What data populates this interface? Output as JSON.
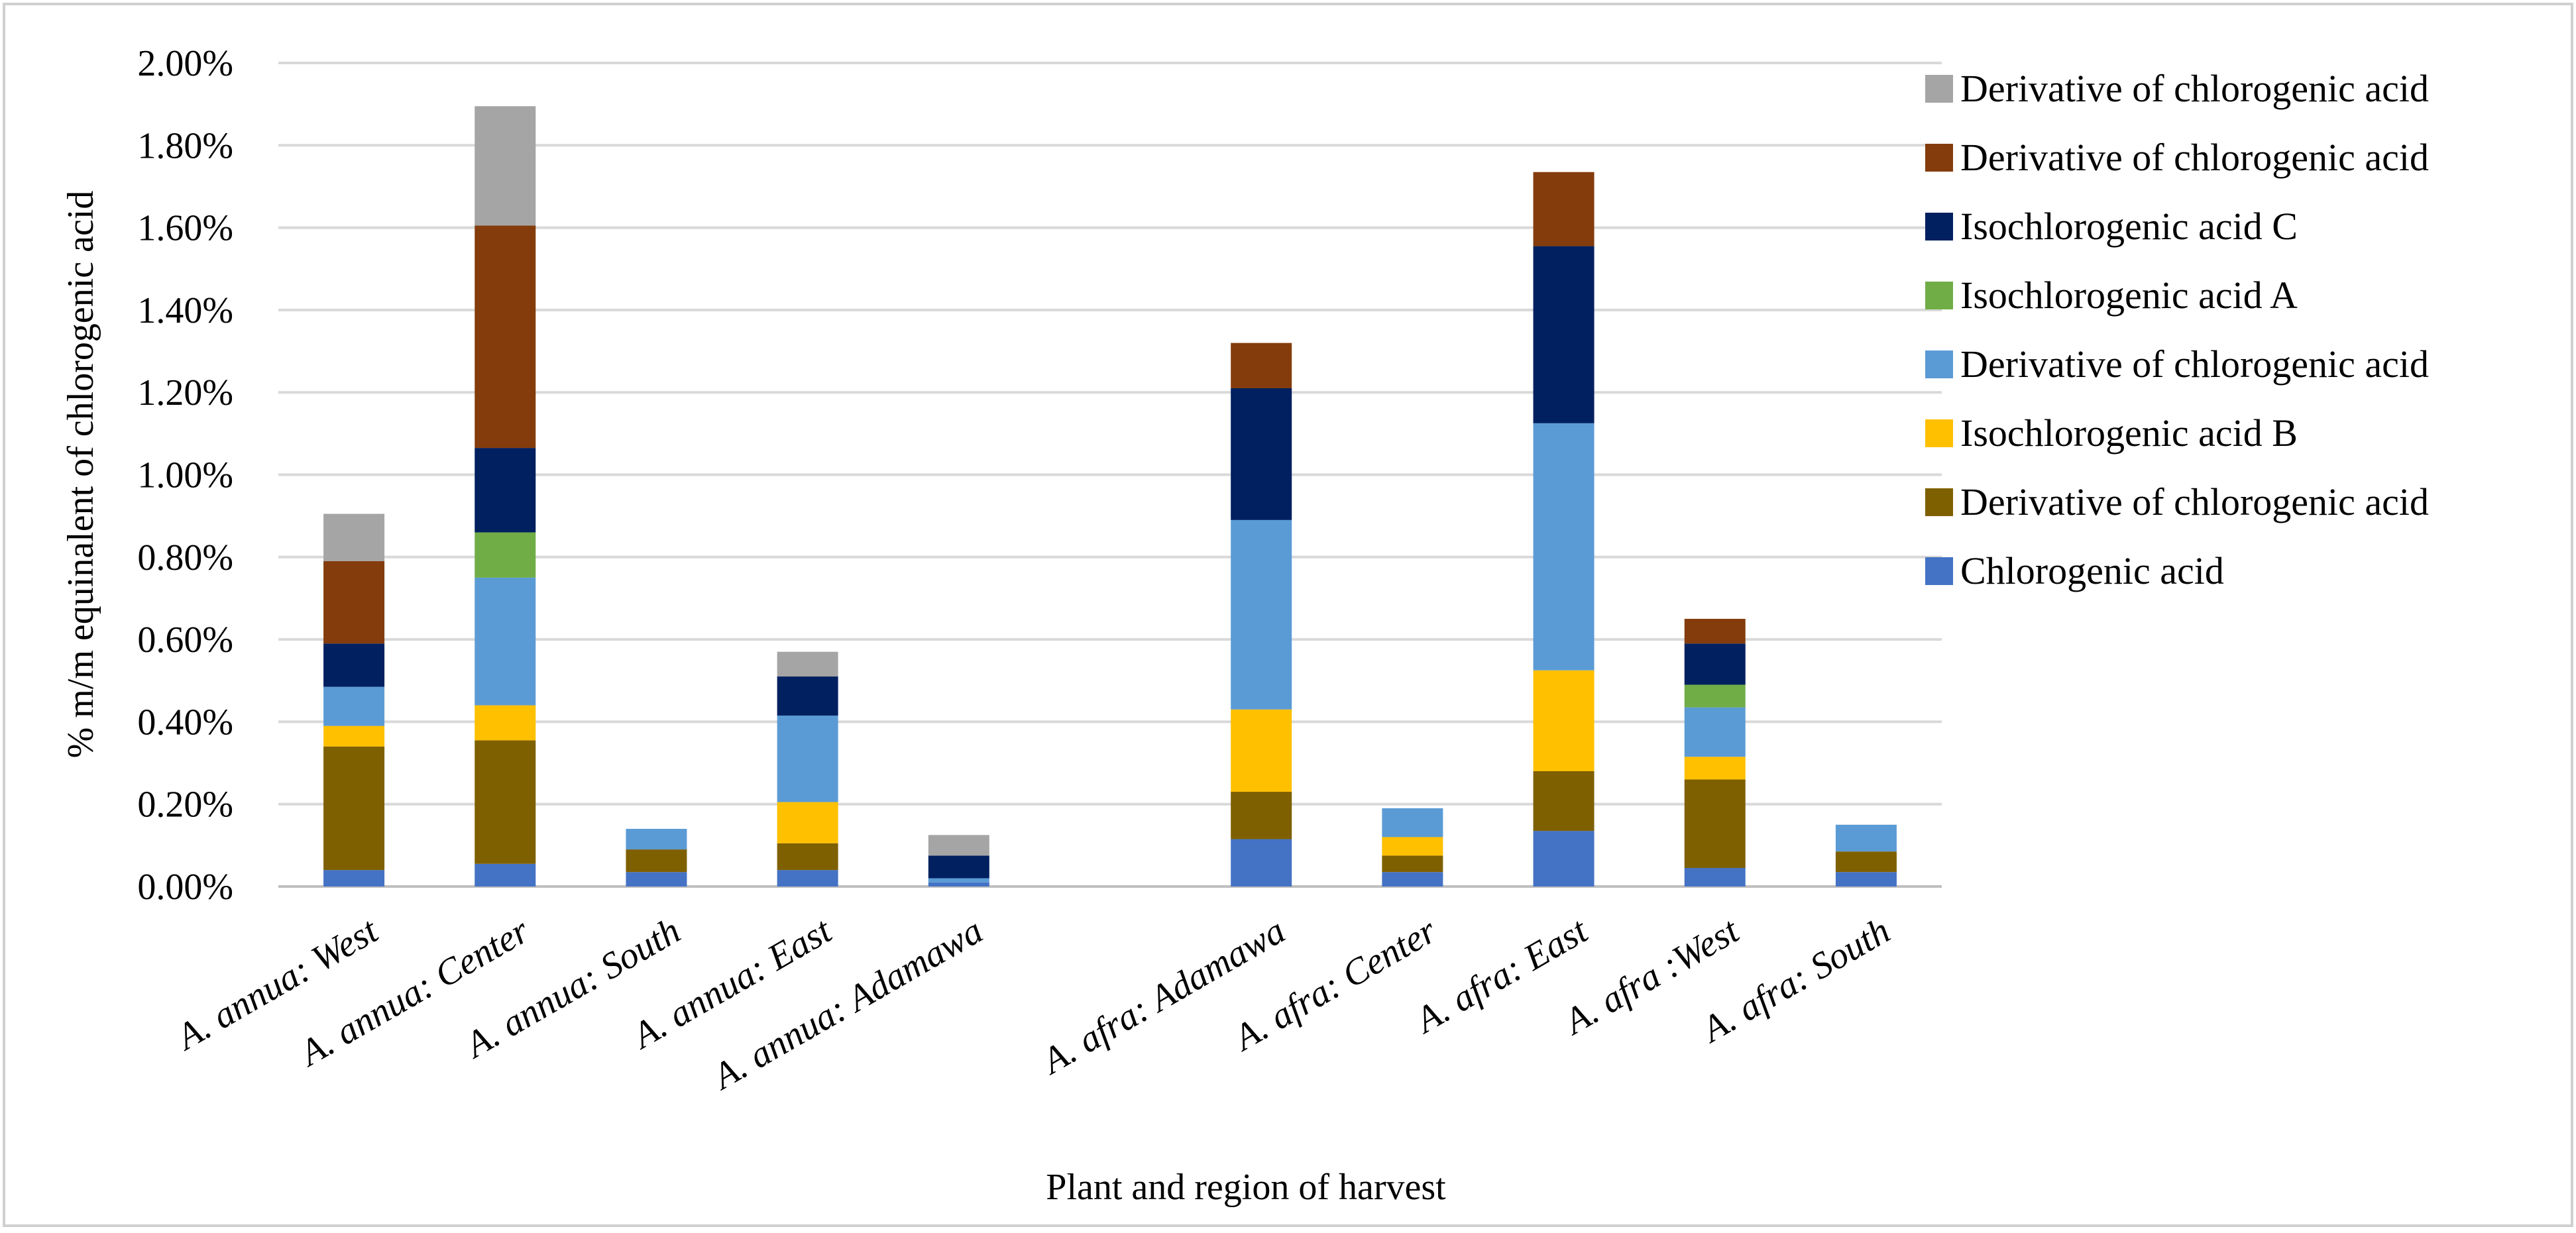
{
  "chart_data": {
    "type": "bar",
    "stacked": true,
    "title": "",
    "xlabel": "Plant and region of harvest",
    "ylabel": "% m/m equinalent of chlorogenic acid",
    "ylim": [
      0,
      0.02
    ],
    "yticks": [
      "0.00%",
      "0.20%",
      "0.40%",
      "0.60%",
      "0.80%",
      "1.00%",
      "1.20%",
      "1.40%",
      "1.60%",
      "1.80%",
      "2.00%"
    ],
    "grid": true,
    "legend_position": "right",
    "categories": [
      "A. annua: West",
      "A. annua: Center",
      "A. annua: South",
      "A. annua:  East",
      "A. annua: Adamawa",
      "",
      "A. afra:  Adamawa",
      "A. afra: Center",
      "A. afra: East",
      "A. afra :West",
      "A. afra: South"
    ],
    "series": [
      {
        "name": "Chlorogenic acid",
        "color": "#4472C4",
        "values": [
          0.0004,
          0.00055,
          0.00035,
          0.0004,
          0.0001,
          0,
          0.00115,
          0.00035,
          0.00135,
          0.00045,
          0.00035
        ]
      },
      {
        "name": "Derivative of chlorogenic acid",
        "color": "#7F6000",
        "values": [
          0.003,
          0.003,
          0.00055,
          0.00065,
          0,
          0,
          0.00115,
          0.0004,
          0.00145,
          0.00215,
          0.0005
        ]
      },
      {
        "name": "Isochlorogenic acid B",
        "color": "#FFC000",
        "values": [
          0.0005,
          0.00085,
          0,
          0.001,
          0,
          0,
          0.002,
          0.00045,
          0.00245,
          0.00055,
          0
        ]
      },
      {
        "name": "Derivative of chlorogenic acid",
        "color": "#5B9BD5",
        "values": [
          0.00095,
          0.0031,
          0.0005,
          0.0021,
          0.0001,
          0,
          0.0046,
          0.0007,
          0.006,
          0.0012,
          0.00065
        ]
      },
      {
        "name": "Isochlorogenic acid A",
        "color": "#70AD47",
        "values": [
          0,
          0.0011,
          0,
          0,
          0,
          0,
          0,
          0,
          0,
          0.00055,
          0
        ]
      },
      {
        "name": "Isochlorogenic acid C",
        "color": "#002060",
        "values": [
          0.00105,
          0.00205,
          0,
          0.00095,
          0.00055,
          0,
          0.0032,
          0,
          0.0043,
          0.001,
          0
        ]
      },
      {
        "name": "Derivative of chlorogenic acid",
        "color": "#843C0C",
        "values": [
          0.002,
          0.0054,
          0,
          0,
          0,
          0,
          0.0011,
          0,
          0.0018,
          0.0006,
          0
        ]
      },
      {
        "name": "Derivative of chlorogenic acid",
        "color": "#A5A5A5",
        "values": [
          0.00115,
          0.0029,
          0,
          0.0006,
          0.0005,
          0,
          0,
          0,
          0,
          0,
          0
        ]
      }
    ]
  }
}
